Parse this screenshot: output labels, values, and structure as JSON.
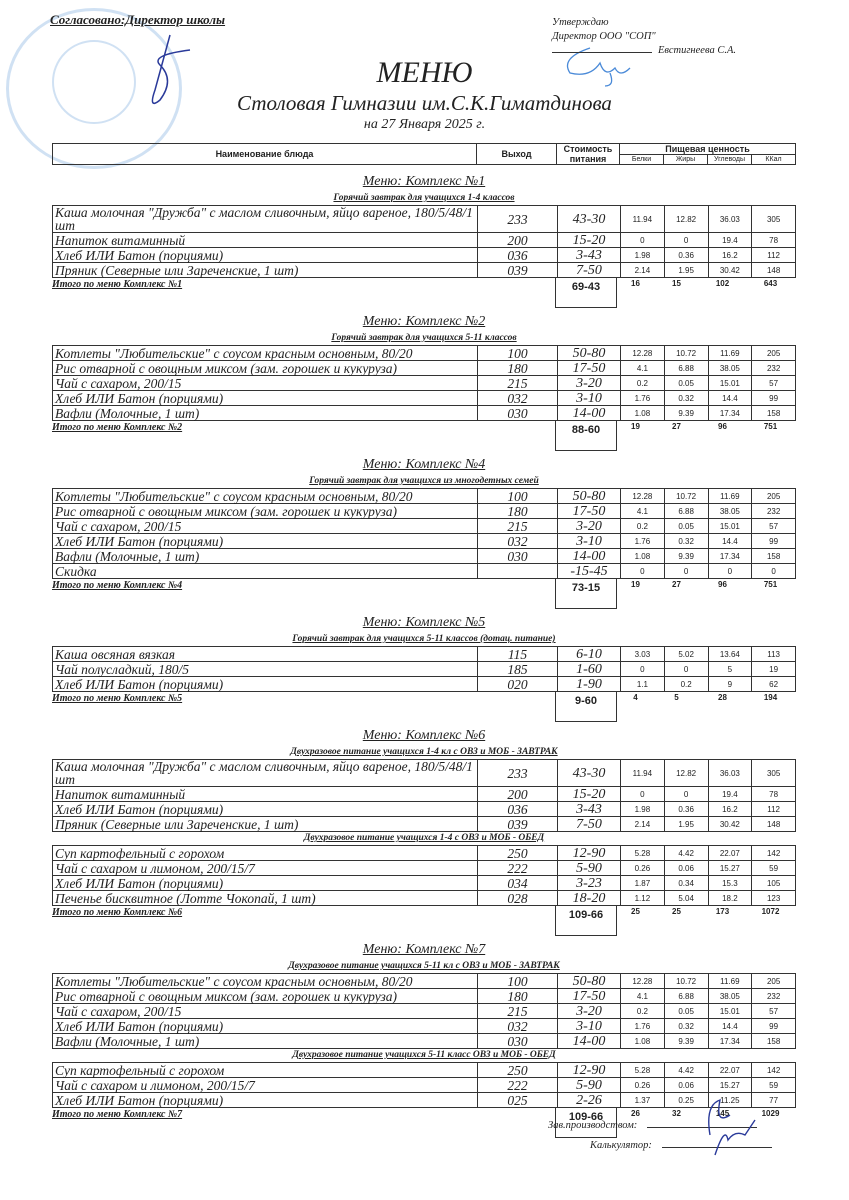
{
  "approval_left": "Согласовано:Директор школы",
  "approval_right": {
    "line1": "Утверждаю",
    "line2": "Директор ООО \"СОП\"",
    "name": "Евстигнеева С.А."
  },
  "title": "МЕНЮ",
  "subtitle": "Столовая Гимназии им.С.К.Гиматдинова",
  "date": "на 27 Января 2025 г.",
  "header": {
    "name": "Наименование блюда",
    "output": "Выход",
    "cost": "Стоимость питания",
    "nutrition": "Пищевая ценность",
    "protein": "Белки",
    "fat": "Жиры",
    "carbs": "Углеводы",
    "kcal": "ККал"
  },
  "sections": [
    {
      "title": "Меню: Комплекс №1",
      "groups": [
        {
          "subtitle": "Горячий завтрак для учащихся 1-4 классов",
          "rows": [
            [
              "Каша молочная \"Дружба\" с маслом сливочным, яйцо вареное, 180/5/48/1 шт",
              "233",
              "43-30",
              "11.94",
              "12.82",
              "36.03",
              "305"
            ],
            [
              "Напиток витаминный",
              "200",
              "15-20",
              "0",
              "0",
              "19.4",
              "78"
            ],
            [
              "Хлеб ИЛИ Батон (порциями)",
              "036",
              "3-43",
              "1.98",
              "0.36",
              "16.2",
              "112"
            ],
            [
              "Пряник (Северные или Зареченские, 1 шт)",
              "039",
              "7-50",
              "2.14",
              "1.95",
              "30.42",
              "148"
            ]
          ]
        }
      ],
      "total": {
        "label": "Итого по меню Комплекс №1",
        "cost": "69-43",
        "protein": "16",
        "fat": "15",
        "carbs": "102",
        "kcal": "643"
      }
    },
    {
      "title": "Меню: Комплекс №2",
      "groups": [
        {
          "subtitle": "Горячий завтрак для учащихся 5-11 классов",
          "rows": [
            [
              "Котлеты  \"Любительские\" с соусом красным основным, 80/20",
              "100",
              "50-80",
              "12.28",
              "10.72",
              "11.69",
              "205"
            ],
            [
              "Рис отварной с овощным миксом (зам. горошек и кукуруза)",
              "180",
              "17-50",
              "4.1",
              "6.88",
              "38.05",
              "232"
            ],
            [
              "Чай с сахаром, 200/15",
              "215",
              "3-20",
              "0.2",
              "0.05",
              "15.01",
              "57"
            ],
            [
              "Хлеб ИЛИ Батон (порциями)",
              "032",
              "3-10",
              "1.76",
              "0.32",
              "14.4",
              "99"
            ],
            [
              "Вафли (Молочные, 1 шт)",
              "030",
              "14-00",
              "1.08",
              "9.39",
              "17.34",
              "158"
            ]
          ]
        }
      ],
      "total": {
        "label": "Итого по меню Комплекс №2",
        "cost": "88-60",
        "protein": "19",
        "fat": "27",
        "carbs": "96",
        "kcal": "751"
      }
    },
    {
      "title": "Меню: Комплекс №4",
      "groups": [
        {
          "subtitle": "Горячий завтрак для учащихся из многодетных семей",
          "rows": [
            [
              "Котлеты  \"Любительские\" с соусом красным основным, 80/20",
              "100",
              "50-80",
              "12.28",
              "10.72",
              "11.69",
              "205"
            ],
            [
              "Рис отварной с овощным миксом (зам. горошек и кукуруза)",
              "180",
              "17-50",
              "4.1",
              "6.88",
              "38.05",
              "232"
            ],
            [
              "Чай с сахаром, 200/15",
              "215",
              "3-20",
              "0.2",
              "0.05",
              "15.01",
              "57"
            ],
            [
              "Хлеб ИЛИ Батон (порциями)",
              "032",
              "3-10",
              "1.76",
              "0.32",
              "14.4",
              "99"
            ],
            [
              "Вафли (Молочные, 1 шт)",
              "030",
              "14-00",
              "1.08",
              "9.39",
              "17.34",
              "158"
            ],
            [
              "Скидка",
              "",
              "-15-45",
              "0",
              "0",
              "0",
              "0"
            ]
          ]
        }
      ],
      "total": {
        "label": "Итого по меню Комплекс №4",
        "cost": "73-15",
        "protein": "19",
        "fat": "27",
        "carbs": "96",
        "kcal": "751"
      }
    },
    {
      "title": "Меню: Комплекс №5",
      "groups": [
        {
          "subtitle": "Горячий завтрак для учащихся 5-11 классов (дотац. питание)",
          "rows": [
            [
              "Каша овсяная вязкая",
              "115",
              "6-10",
              "3.03",
              "5.02",
              "13.64",
              "113"
            ],
            [
              "Чай полусладкий, 180/5",
              "185",
              "1-60",
              "0",
              "0",
              "5",
              "19"
            ],
            [
              "Хлеб ИЛИ Батон (порциями)",
              "020",
              "1-90",
              "1.1",
              "0.2",
              "9",
              "62"
            ]
          ]
        }
      ],
      "total": {
        "label": "Итого по меню Комплекс №5",
        "cost": "9-60",
        "protein": "4",
        "fat": "5",
        "carbs": "28",
        "kcal": "194"
      }
    },
    {
      "title": "Меню: Комплекс №6",
      "groups": [
        {
          "subtitle": "Двухразовое питание учащихся 1-4 кл с ОВЗ и МОБ - ЗАВТРАК",
          "rows": [
            [
              "Каша молочная \"Дружба\" с маслом сливочным, яйцо вареное, 180/5/48/1 шт",
              "233",
              "43-30",
              "11.94",
              "12.82",
              "36.03",
              "305"
            ],
            [
              "Напиток витаминный",
              "200",
              "15-20",
              "0",
              "0",
              "19.4",
              "78"
            ],
            [
              "Хлеб ИЛИ Батон (порциями)",
              "036",
              "3-43",
              "1.98",
              "0.36",
              "16.2",
              "112"
            ],
            [
              "Пряник (Северные или Зареченские, 1 шт)",
              "039",
              "7-50",
              "2.14",
              "1.95",
              "30.42",
              "148"
            ]
          ]
        },
        {
          "subtitle": "Двухразовое питание учащихся 1-4 с ОВЗ и МОБ - ОБЕД",
          "rows": [
            [
              "Суп картофельный с горохом",
              "250",
              "12-90",
              "5.28",
              "4.42",
              "22.07",
              "142"
            ],
            [
              "Чай с сахаром и лимоном, 200/15/7",
              "222",
              "5-90",
              "0.26",
              "0.06",
              "15.27",
              "59"
            ],
            [
              "Хлеб ИЛИ Батон (порциями)",
              "034",
              "3-23",
              "1.87",
              "0.34",
              "15.3",
              "105"
            ],
            [
              "Печенье бисквитное (Лотте Чокопай, 1 шт)",
              "028",
              "18-20",
              "1.12",
              "5.04",
              "18.2",
              "123"
            ]
          ]
        }
      ],
      "total": {
        "label": "Итого по меню Комплекс №6",
        "cost": "109-66",
        "protein": "25",
        "fat": "25",
        "carbs": "173",
        "kcal": "1072"
      }
    },
    {
      "title": "Меню: Комплекс №7",
      "groups": [
        {
          "subtitle": "Двухразовое питание учащихся 5-11 кл с  ОВЗ и МОБ - ЗАВТРАК",
          "rows": [
            [
              "Котлеты  \"Любительские\" с соусом красным основным, 80/20",
              "100",
              "50-80",
              "12.28",
              "10.72",
              "11.69",
              "205"
            ],
            [
              "Рис отварной с овощным миксом (зам. горошек и кукуруза)",
              "180",
              "17-50",
              "4.1",
              "6.88",
              "38.05",
              "232"
            ],
            [
              "Чай с сахаром, 200/15",
              "215",
              "3-20",
              "0.2",
              "0.05",
              "15.01",
              "57"
            ],
            [
              "Хлеб ИЛИ Батон (порциями)",
              "032",
              "3-10",
              "1.76",
              "0.32",
              "14.4",
              "99"
            ],
            [
              "Вафли (Молочные, 1 шт)",
              "030",
              "14-00",
              "1.08",
              "9.39",
              "17.34",
              "158"
            ]
          ]
        },
        {
          "subtitle": "Двухразовое питание учащихся 5-11 класс ОВЗ и МОБ - ОБЕД",
          "rows": [
            [
              "Суп картофельный с горохом",
              "250",
              "12-90",
              "5.28",
              "4.42",
              "22.07",
              "142"
            ],
            [
              "Чай с сахаром и лимоном, 200/15/7",
              "222",
              "5-90",
              "0.26",
              "0.06",
              "15.27",
              "59"
            ],
            [
              "Хлеб ИЛИ Батон (порциями)",
              "025",
              "2-26",
              "1.37",
              "0.25",
              "11.25",
              "77"
            ]
          ]
        }
      ],
      "total": {
        "label": "Итого по меню Комплекс №7",
        "cost": "109-66",
        "protein": "26",
        "fat": "32",
        "carbs": "145",
        "kcal": "1029"
      }
    }
  ],
  "footer": {
    "production_head": "Зав.производством:",
    "calculator": "Калькулятор:"
  }
}
